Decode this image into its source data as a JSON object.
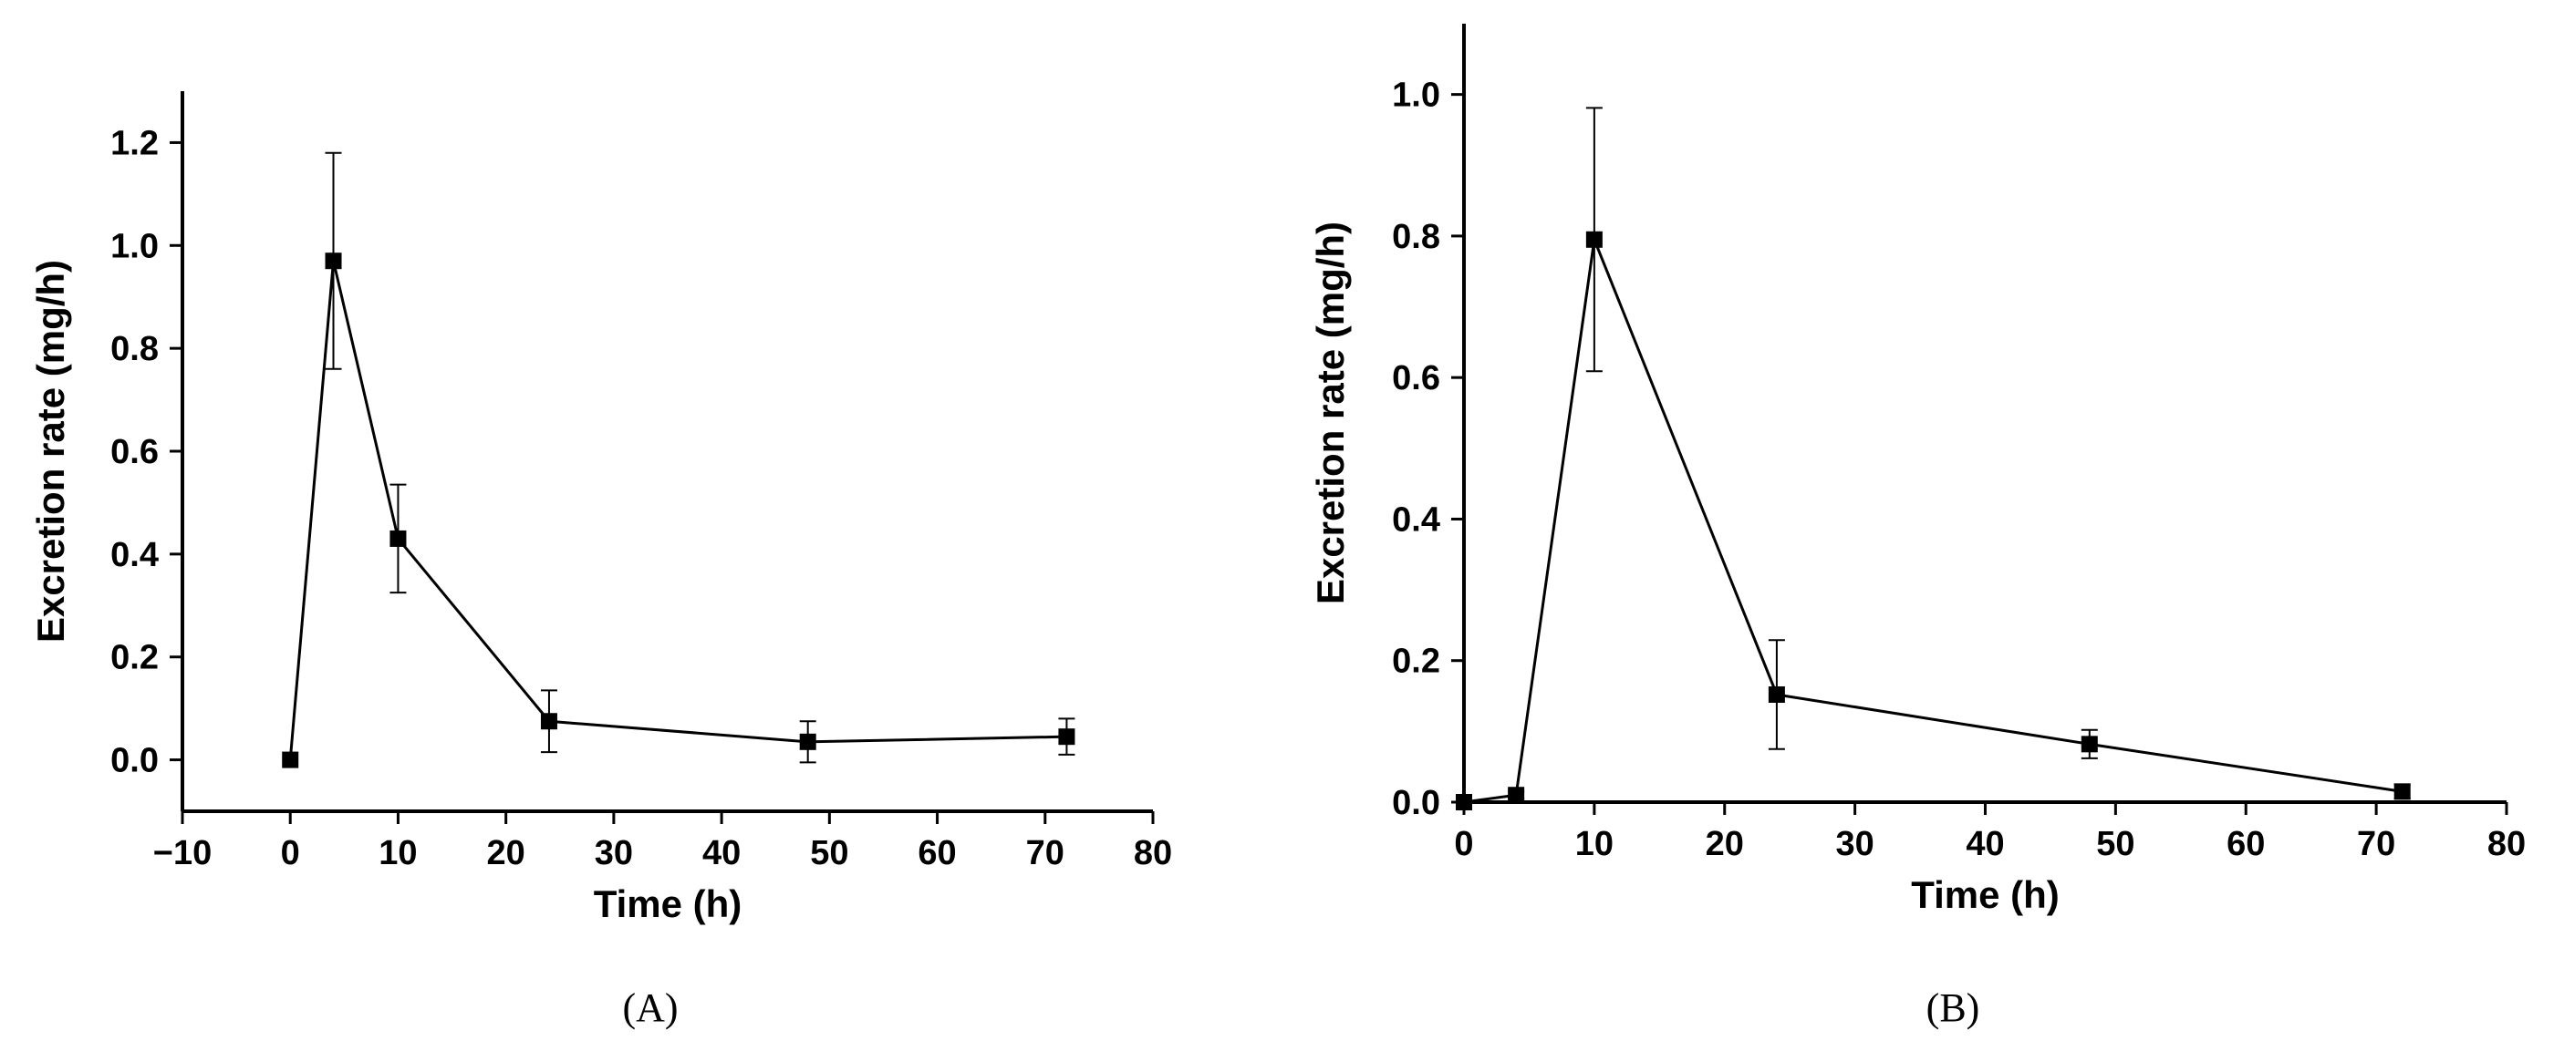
{
  "chart_data": [
    {
      "type": "line",
      "panel_label": "(A)",
      "xlabel": "Time (h)",
      "ylabel": "Excretion rate (mg/h)",
      "xlim": [
        -10,
        80
      ],
      "ylim": [
        -0.1,
        1.3
      ],
      "xticks": [
        -10,
        0,
        10,
        20,
        30,
        40,
        50,
        60,
        70,
        80
      ],
      "xtick_labels": [
        "−10",
        "0",
        "10",
        "20",
        "30",
        "40",
        "50",
        "60",
        "70",
        "80"
      ],
      "yticks": [
        0.0,
        0.2,
        0.4,
        0.6,
        0.8,
        1.0,
        1.2
      ],
      "ytick_labels": [
        "0.0",
        "0.2",
        "0.4",
        "0.6",
        "0.8",
        "1.0",
        "1.2"
      ],
      "grid": false,
      "series": [
        {
          "x": [
            0,
            4,
            10,
            24,
            48,
            72
          ],
          "y": [
            0.0,
            0.97,
            0.43,
            0.075,
            0.035,
            0.045
          ],
          "error": [
            0.0,
            0.21,
            0.105,
            0.06,
            0.04,
            0.035
          ],
          "marker": "square",
          "color": "#000000"
        }
      ]
    },
    {
      "type": "line",
      "panel_label": "(B)",
      "xlabel": "Time (h)",
      "ylabel": "Excretion rate (mg/h)",
      "xlim": [
        0,
        80
      ],
      "ylim": [
        0,
        1.1
      ],
      "xticks": [
        0,
        10,
        20,
        30,
        40,
        50,
        60,
        70,
        80
      ],
      "xtick_labels": [
        "0",
        "10",
        "20",
        "30",
        "40",
        "50",
        "60",
        "70",
        "80"
      ],
      "yticks": [
        0.0,
        0.2,
        0.4,
        0.6,
        0.8,
        1.0
      ],
      "ytick_labels": [
        "0.0",
        "0.2",
        "0.4",
        "0.6",
        "0.8",
        "1.0"
      ],
      "grid": false,
      "series": [
        {
          "x": [
            0,
            4,
            10,
            24,
            48,
            72
          ],
          "y": [
            0.0,
            0.01,
            0.795,
            0.152,
            0.082,
            0.015
          ],
          "error": [
            0.0,
            0.005,
            0.186,
            0.077,
            0.02,
            0.01
          ],
          "marker": "square",
          "color": "#000000"
        }
      ]
    }
  ]
}
